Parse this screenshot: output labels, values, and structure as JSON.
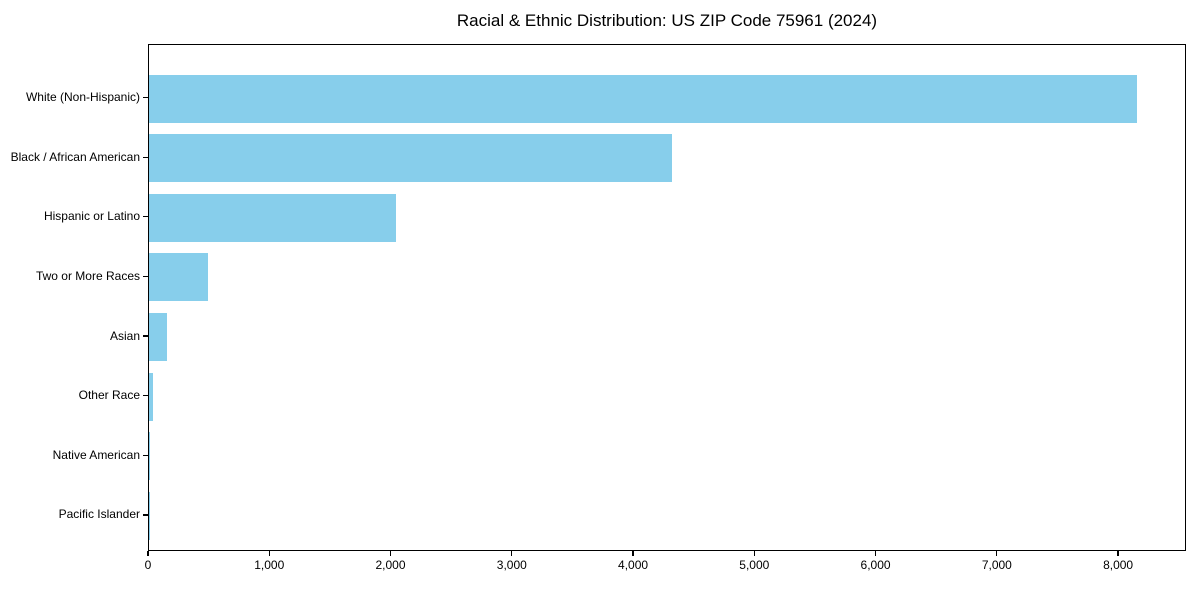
{
  "title": "Racial & Ethnic Distribution: US ZIP Code 75961 (2024)",
  "chart_data": {
    "type": "bar",
    "orientation": "horizontal",
    "title": "Racial & Ethnic Distribution: US ZIP Code 75961 (2024)",
    "categories": [
      "White (Non-Hispanic)",
      "Black / African American",
      "Hispanic or Latino",
      "Two or More Races",
      "Asian",
      "Other Race",
      "Native American",
      "Pacific Islander"
    ],
    "values": [
      8150,
      4310,
      2040,
      490,
      145,
      30,
      10,
      2
    ],
    "xlabel": "",
    "ylabel": "",
    "xlim": [
      0,
      8560
    ],
    "xticks": [
      0,
      1000,
      2000,
      3000,
      4000,
      5000,
      6000,
      7000,
      8000
    ],
    "xtick_labels": [
      "0",
      "1,000",
      "2,000",
      "3,000",
      "4,000",
      "5,000",
      "6,000",
      "7,000",
      "8,000"
    ],
    "bar_color": "#87CEEB",
    "spine_color": "#000000",
    "text_color": "#000000",
    "grid": false,
    "legend": null
  }
}
